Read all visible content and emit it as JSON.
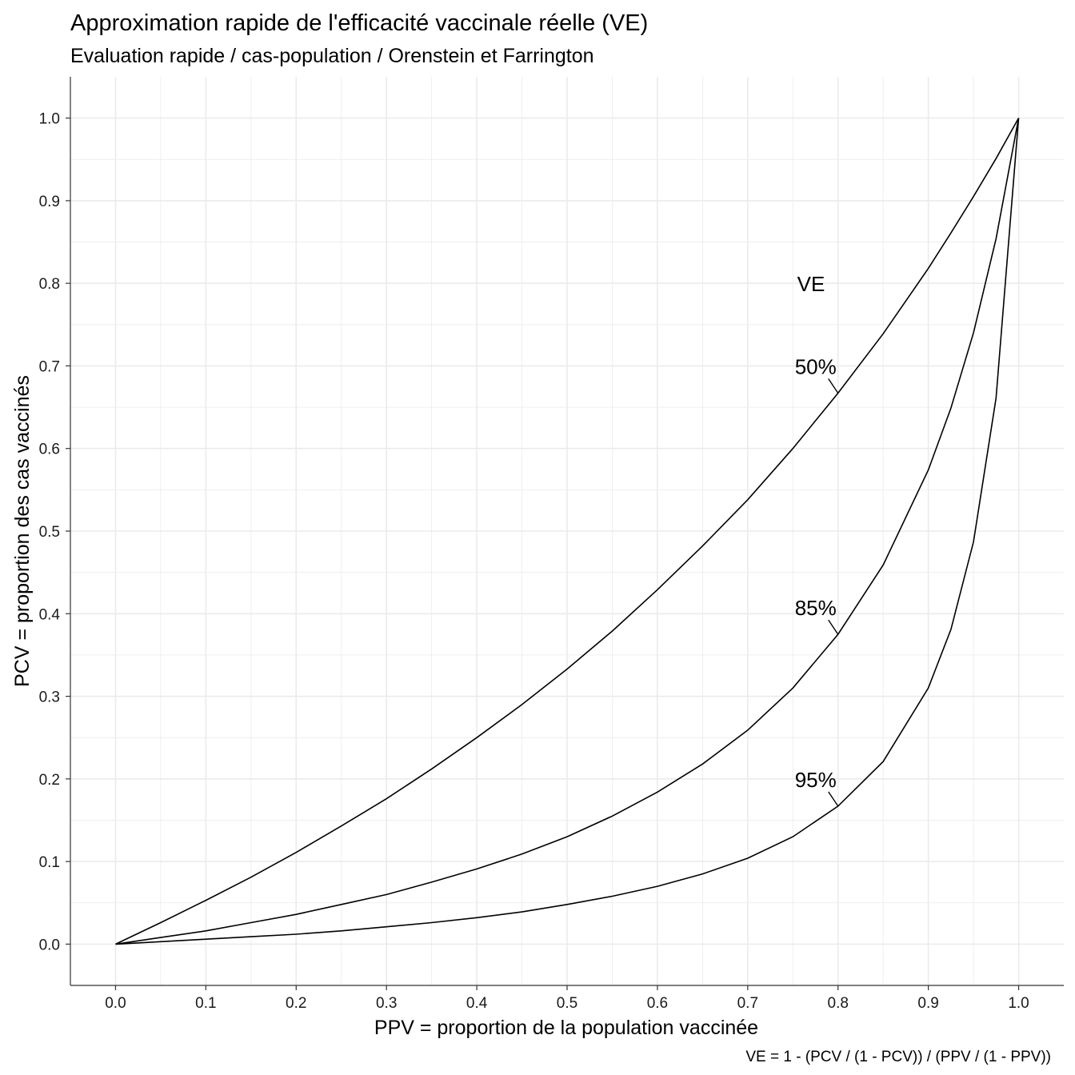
{
  "chart_data": {
    "type": "line",
    "title": "Approximation rapide de l'efficacité vaccinale réelle (VE)",
    "subtitle": "Evaluation rapide / cas-population / Orenstein et Farrington",
    "xlabel": "PPV = proportion de la population vaccinée",
    "ylabel": "PCV = proportion des cas vaccinés",
    "caption": "VE = 1 - (PCV / (1 - PCV)) / (PPV / (1 - PPV))",
    "annotation_title": "VE",
    "xlim": [
      -0.05,
      1.05
    ],
    "ylim": [
      -0.05,
      1.05
    ],
    "x_ticks": [
      "0.0",
      "0.1",
      "0.2",
      "0.3",
      "0.4",
      "0.5",
      "0.6",
      "0.7",
      "0.8",
      "0.9",
      "1.0"
    ],
    "y_ticks": [
      "0.0",
      "0.1",
      "0.2",
      "0.3",
      "0.4",
      "0.5",
      "0.6",
      "0.7",
      "0.8",
      "0.9",
      "1.0"
    ],
    "grid": true,
    "x": [
      0.0,
      0.05,
      0.1,
      0.15,
      0.2,
      0.25,
      0.3,
      0.35,
      0.4,
      0.45,
      0.5,
      0.55,
      0.6,
      0.65,
      0.7,
      0.75,
      0.8,
      0.85,
      0.9,
      0.925,
      0.95,
      0.975,
      1.0
    ],
    "series": [
      {
        "name": "50%",
        "values": [
          0.0,
          0.026,
          0.053,
          0.081,
          0.111,
          0.143,
          0.176,
          0.212,
          0.25,
          0.29,
          0.333,
          0.379,
          0.429,
          0.482,
          0.538,
          0.6,
          0.667,
          0.739,
          0.818,
          0.861,
          0.905,
          0.951,
          1.0
        ]
      },
      {
        "name": "85%",
        "values": [
          0.0,
          0.008,
          0.016,
          0.026,
          0.036,
          0.048,
          0.06,
          0.075,
          0.091,
          0.109,
          0.13,
          0.155,
          0.184,
          0.218,
          0.259,
          0.31,
          0.375,
          0.459,
          0.574,
          0.649,
          0.74,
          0.854,
          1.0
        ]
      },
      {
        "name": "95%",
        "values": [
          0.0,
          0.003,
          0.006,
          0.009,
          0.012,
          0.016,
          0.021,
          0.026,
          0.032,
          0.039,
          0.048,
          0.058,
          0.07,
          0.085,
          0.104,
          0.13,
          0.167,
          0.221,
          0.31,
          0.381,
          0.487,
          0.661,
          1.0
        ]
      }
    ],
    "line_color": "#000000",
    "grid_color": "#ebebeb"
  }
}
